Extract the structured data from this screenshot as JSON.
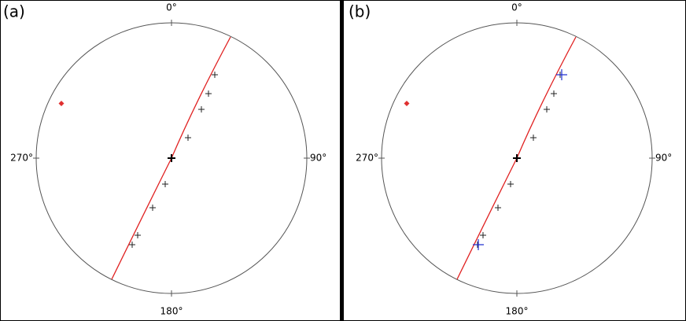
{
  "panels": [
    {
      "label": "(a)",
      "north": "0°",
      "east": "90°",
      "south": "180°",
      "west": "270°"
    },
    {
      "label": "(b)",
      "north": "0°",
      "east": "90°",
      "south": "180°",
      "west": "270°"
    }
  ]
}
